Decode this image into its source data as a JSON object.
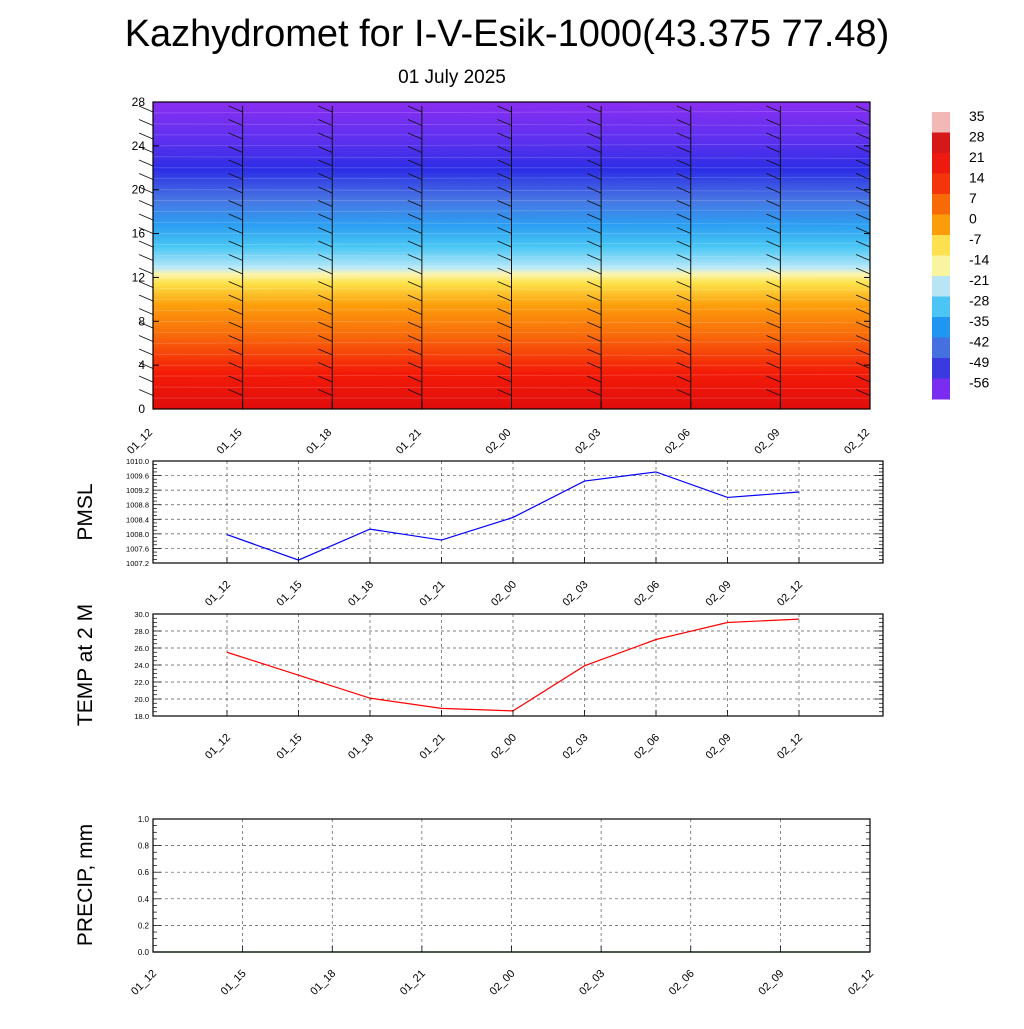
{
  "title": "Kazhydromet for I-V-Esik-1000(43.375 77.48)",
  "subtitle": "01 July 2025",
  "time_labels": [
    "01_12",
    "01_15",
    "01_18",
    "01_21",
    "02_00",
    "02_03",
    "02_06",
    "02_09",
    "02_12"
  ],
  "chart_data": [
    {
      "type": "heatmap",
      "description_axis": "height",
      "y_ticks": [
        "0",
        "4",
        "8",
        "12",
        "16",
        "20",
        "24",
        "28"
      ],
      "ylim": [
        0,
        28
      ],
      "x_ticks": [
        "01_12",
        "01_15",
        "01_18",
        "01_21",
        "02_00",
        "02_03",
        "02_06",
        "02_09",
        "02_12"
      ],
      "colorbar_labels": [
        "35",
        "28",
        "21",
        "14",
        "7",
        "0",
        "-7",
        "-14",
        "-21",
        "-28",
        "-35",
        "-42",
        "-49",
        "-56"
      ],
      "colorbar_colors": [
        "#f2b8b8",
        "#d61818",
        "#ee1a10",
        "#f4350c",
        "#f86a08",
        "#fb9c0a",
        "#fde050",
        "#f8f4a0",
        "#b8e4f4",
        "#4cc4f4",
        "#2196f0",
        "#4470e0",
        "#3a3ae0",
        "#7a2cf0"
      ],
      "grid": false
    },
    {
      "type": "line",
      "ylabel": "PMSL",
      "ylim": [
        1007.2,
        1010.0
      ],
      "y_ticks": [
        "1007.2",
        "1007.6",
        "1008.0",
        "1008.4",
        "1008.8",
        "1009.2",
        "1009.6",
        "1010.0"
      ],
      "categories": [
        "01_12",
        "01_15",
        "01_18",
        "01_21",
        "02_00",
        "02_03",
        "02_06",
        "02_09",
        "02_12"
      ],
      "series": [
        {
          "values": [
            1007.98,
            1007.28,
            1008.13,
            1007.83,
            1008.45,
            1009.45,
            1009.7,
            1009.0,
            1009.15
          ],
          "color": "#0000ff"
        }
      ],
      "grid": true
    },
    {
      "type": "line",
      "ylabel": "TEMP at 2 M",
      "ylim": [
        18.0,
        30.0
      ],
      "y_ticks": [
        "18.0",
        "20.0",
        "22.0",
        "24.0",
        "26.0",
        "28.0",
        "30.0"
      ],
      "categories": [
        "01_12",
        "01_15",
        "01_18",
        "01_21",
        "02_00",
        "02_03",
        "02_06",
        "02_09",
        "02_12"
      ],
      "series": [
        {
          "values": [
            25.5,
            22.8,
            20.1,
            18.9,
            18.6,
            23.9,
            27.0,
            29.0,
            29.4
          ],
          "color": "#ff0000"
        }
      ],
      "grid": true
    },
    {
      "type": "line",
      "ylabel": "PRECIP, mm",
      "ylim": [
        0.0,
        1.0
      ],
      "y_ticks": [
        "0.0",
        "0.2",
        "0.4",
        "0.6",
        "0.8",
        "1.0"
      ],
      "x_ticks": [
        "01_12",
        "01_15",
        "01_18",
        "01_21",
        "02_00",
        "02_03",
        "02_06",
        "02_09",
        "02_12"
      ],
      "series": [
        {
          "values": [
            0,
            0,
            0,
            0,
            0,
            0,
            0,
            0,
            0
          ],
          "color": "#008000"
        }
      ],
      "grid": true
    }
  ]
}
